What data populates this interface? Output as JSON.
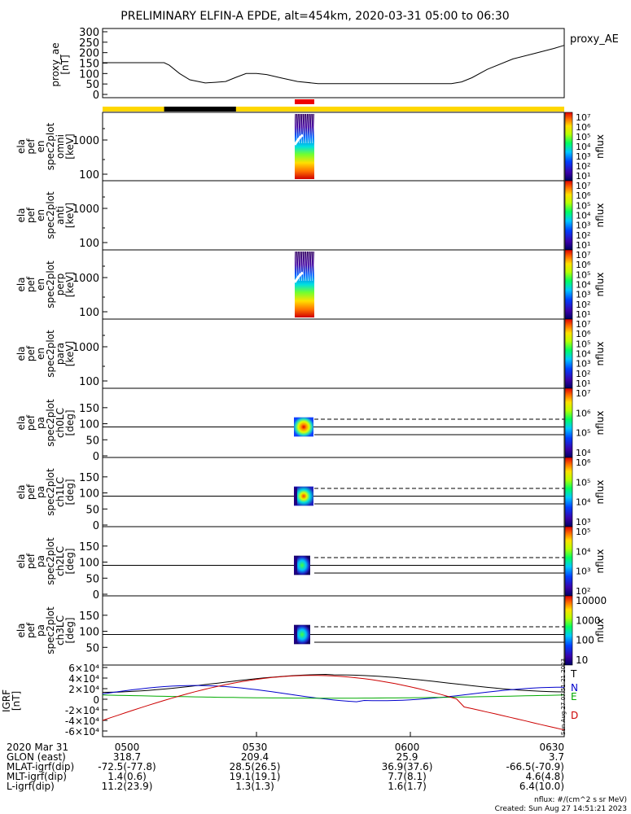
{
  "title": "PRELIMINARY ELFIN-A EPDE, alt=454km, 2020-03-31 05:00 to 06:30",
  "chart_data": [
    {
      "type": "line",
      "ylabel": "proxy_ae\n[nT]",
      "legend": "proxy_AE",
      "yticks": [
        "300",
        "250",
        "200",
        "150",
        "100",
        "50",
        "0"
      ],
      "ylim": [
        0,
        300
      ],
      "x_minutes": [
        0,
        4,
        8,
        12,
        13,
        15,
        17,
        20,
        22,
        24,
        26,
        28,
        30,
        32,
        35,
        38,
        42,
        45,
        48,
        52,
        56,
        60,
        64,
        68,
        70,
        72,
        75,
        80,
        84,
        88,
        90
      ],
      "y": [
        152,
        152,
        152,
        152,
        140,
        100,
        70,
        55,
        58,
        62,
        82,
        100,
        100,
        95,
        78,
        62,
        52,
        52,
        52,
        52,
        52,
        52,
        52,
        52,
        60,
        80,
        120,
        170,
        195,
        220,
        235
      ]
    },
    {
      "type": "heatmap",
      "ylabel": "ela\npef\nen\nspec2plot\nomni\n[keV]",
      "yticks": [
        "1000",
        "100"
      ],
      "cbar_label": "nflux",
      "cbar_ticks": [
        "10⁷",
        "10⁶",
        "10⁵",
        "10⁴",
        "10³",
        "10²",
        "10¹"
      ]
    },
    {
      "type": "heatmap",
      "ylabel": "ela\npef\nen\nspec2plot\nanti\n[keV]",
      "yticks": [
        "1000",
        "100"
      ],
      "cbar_label": "nflux",
      "cbar_ticks": [
        "10⁷",
        "10⁶",
        "10⁵",
        "10⁴",
        "10³",
        "10²",
        "10¹"
      ]
    },
    {
      "type": "heatmap",
      "ylabel": "ela\npef\nen\nspec2plot\nperp\n[keV]",
      "yticks": [
        "1000",
        "100"
      ],
      "cbar_label": "nflux",
      "cbar_ticks": [
        "10⁷",
        "10⁶",
        "10⁵",
        "10⁴",
        "10³",
        "10²",
        "10¹"
      ]
    },
    {
      "type": "heatmap",
      "ylabel": "ela\npef\nen\nspec2plot\npara\n[keV]",
      "yticks": [
        "1000",
        "100"
      ],
      "cbar_label": "nflux",
      "cbar_ticks": [
        "10⁷",
        "10⁶",
        "10⁵",
        "10⁴",
        "10³",
        "10²",
        "10¹"
      ]
    },
    {
      "type": "heatmap",
      "ylabel": "ela\npef\npa\nspec2plot\nch0LC\n[deg]",
      "yticks": [
        "150",
        "100",
        "50",
        "0"
      ],
      "cbar_label": "nflux",
      "cbar_ticks": [
        "10⁷",
        "10⁶",
        "10⁵",
        "10⁴"
      ]
    },
    {
      "type": "heatmap",
      "ylabel": "ela\npef\npa\nspec2plot\nch1LC\n[deg]",
      "yticks": [
        "150",
        "100",
        "50",
        "0"
      ],
      "cbar_label": "nflux",
      "cbar_ticks": [
        "10⁶",
        "10⁵",
        "10⁴",
        "10³"
      ]
    },
    {
      "type": "heatmap",
      "ylabel": "ela\npef\npa\nspec2plot\nch2LC\n[deg]",
      "yticks": [
        "150",
        "100",
        "50",
        "0"
      ],
      "cbar_label": "nflux",
      "cbar_ticks": [
        "10⁵",
        "10⁴",
        "10³",
        "10²"
      ]
    },
    {
      "type": "heatmap",
      "ylabel": "ela\npef\npa\nspec2plot\nch3LC\n[deg]",
      "yticks": [
        "150",
        "100",
        "50"
      ],
      "cbar_label": "nflux",
      "cbar_ticks": [
        "10000",
        "1000",
        "100",
        "10"
      ]
    },
    {
      "type": "line",
      "ylabel": "IGRF\n[nT]",
      "yticks": [
        "6×10⁴",
        "4×10⁴",
        "2×10⁴",
        "0",
        "-2×10⁴",
        "-4×10⁴",
        "-6×10⁴"
      ],
      "ylim": [
        -60000,
        60000
      ],
      "legend": [
        "T",
        "N",
        "E",
        "D"
      ],
      "side_note": "Sun Aug 27 07:51:21 2023"
    }
  ],
  "ephemeris": {
    "rows": [
      {
        "label": "2020 Mar 31",
        "values": [
          "0500",
          "0530",
          "0600",
          "0630"
        ]
      },
      {
        "label": "GLON (east)",
        "values": [
          "318.7",
          "209.4",
          "25.9",
          "3.7"
        ]
      },
      {
        "label": "MLAT-igrf(dip)",
        "values": [
          "-72.5(-77.8)",
          "28.5(26.5)",
          "36.9(37.6)",
          "-66.5(-70.9)"
        ]
      },
      {
        "label": "MLT-igrf(dip)",
        "values": [
          "1.4(0.6)",
          "19.1(19.1)",
          "7.7(8.1)",
          "4.6(4.8)"
        ]
      },
      {
        "label": "L-igrf(dip)",
        "values": [
          "11.2(23.9)",
          "1.3(1.3)",
          "1.6(1.7)",
          "6.4(10.0)"
        ]
      }
    ]
  },
  "footer": {
    "units": "nflux: #/(cm^2 s sr MeV)",
    "created": "Created: Sun Aug 27 14:51:21 2023"
  }
}
